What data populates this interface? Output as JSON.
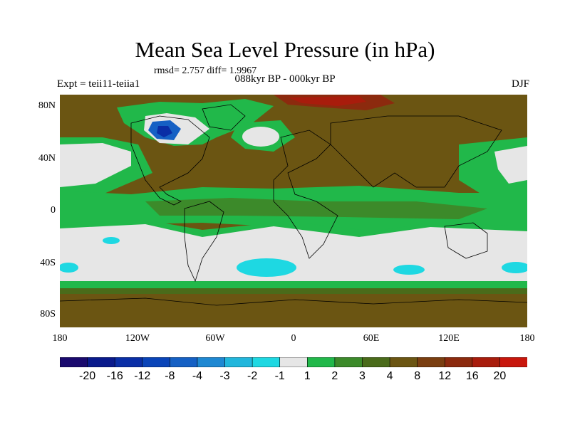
{
  "title": "Mean Sea Level Pressure (in hPa)",
  "stats_text": "rmsd= 2.757 diff= 1.9967",
  "experiment": "Expt = teii11-teiia1",
  "period": "088kyr BP - 000kyr BP",
  "season": "DJF",
  "lat_ticks": [
    "80N",
    "40N",
    "0",
    "40S",
    "80S"
  ],
  "lon_ticks": [
    "180",
    "120W",
    "60W",
    "0",
    "60E",
    "120E",
    "180"
  ],
  "colorbar": {
    "labels": [
      "-20",
      "-16",
      "-12",
      "-8",
      "-4",
      "-3",
      "-2",
      "-1",
      "1",
      "2",
      "3",
      "4",
      "8",
      "12",
      "16",
      "20"
    ],
    "colors": [
      "#1a0a6e",
      "#0a1a8c",
      "#0a2ea6",
      "#0a44b8",
      "#1560c4",
      "#1e88d2",
      "#21b6dc",
      "#1ed8e2",
      "#e6e6e6",
      "#21b84a",
      "#3c8a2a",
      "#4a6b1a",
      "#6b5512",
      "#7a3e10",
      "#8c2a0e",
      "#a81c0c",
      "#c8160c"
    ]
  },
  "colors": {
    "positive_large": "#6b5512",
    "positive_mid": "#4a6b1a",
    "positive_small": "#21b84a",
    "near_zero": "#e6e6e6",
    "negative_small": "#1ed8e2",
    "negative_mid": "#1560c4",
    "max_positive": "#a81c0c"
  }
}
